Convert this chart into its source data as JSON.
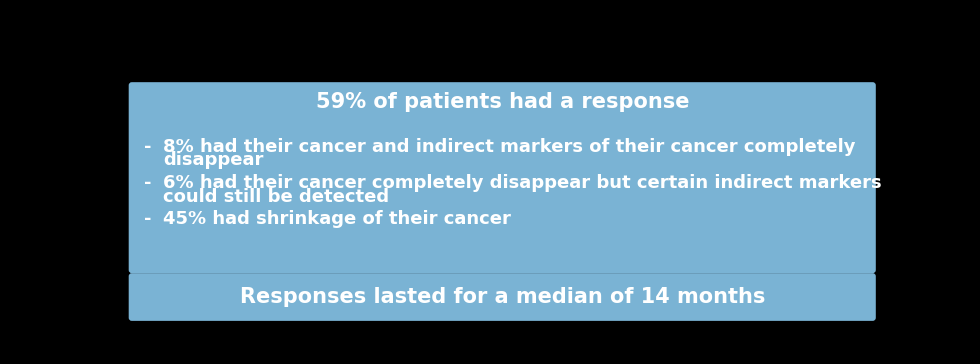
{
  "page_bg_color": "#000000",
  "main_box_color": "#7ab3d4",
  "footer_box_color": "#7ab3d4",
  "title_text": "59% of patients had a response",
  "title_color": "#ffffff",
  "title_fontsize": 15,
  "bullet_color": "#ffffff",
  "bullet_fontsize": 13,
  "footer_text": "Responses lasted for a median of 14 months",
  "footer_color": "#ffffff",
  "footer_fontsize": 15,
  "bullet_dash": "-",
  "bullet_line1_texts": [
    "8% had their cancer and indirect markers of their cancer completely",
    "6% had their cancer completely disappear but certain indirect markers",
    "45% had shrinkage of their cancer"
  ],
  "bullet_line2_texts": [
    "disappear",
    "could still be detected",
    ""
  ]
}
